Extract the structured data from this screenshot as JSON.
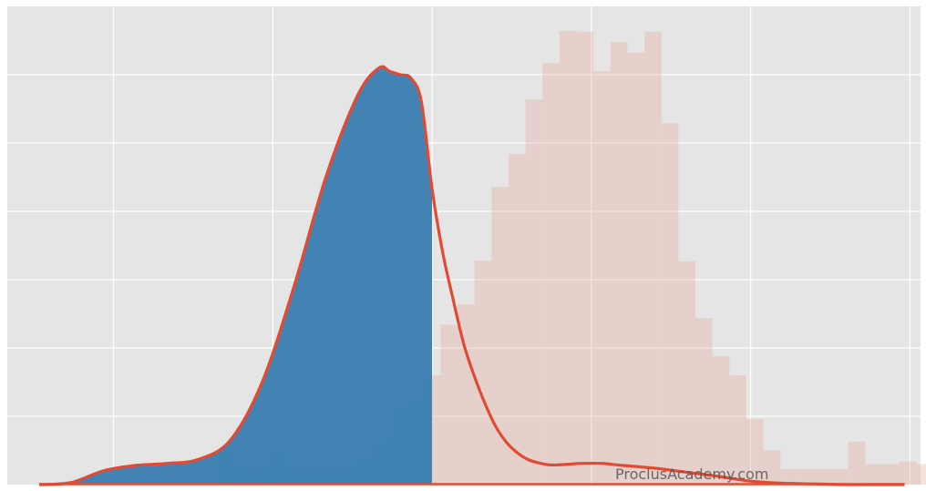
{
  "chart_data": {
    "type": "area",
    "title": "",
    "xlabel": "",
    "ylabel": "",
    "xlim": [
      -4.0,
      4.6
    ],
    "ylim": [
      0,
      0.7
    ],
    "grid": true,
    "xticks": [
      -3,
      -1.5,
      0,
      1.5,
      3,
      4.5
    ],
    "yticks": [
      0.1,
      0.2,
      0.3,
      0.4,
      0.5,
      0.6
    ],
    "shade_upper_bound": 0.0,
    "histogram": {
      "bin_start": -2.0,
      "bin_width": 0.16,
      "heights": [
        0.053,
        0.023,
        0.023,
        0.053,
        0.023,
        0.023,
        0.023,
        0.023,
        0.038,
        0.064,
        0.11,
        0.128,
        0.16,
        0.234,
        0.264,
        0.328,
        0.436,
        0.484,
        0.564,
        0.617,
        0.664,
        0.663,
        0.605,
        0.648,
        0.632,
        0.663,
        0.529,
        0.327,
        0.244,
        0.188,
        0.16,
        0.096,
        0.05,
        0.023,
        0.023,
        0.023,
        0.023,
        0.063,
        0.03,
        0.03,
        0.034,
        0.03
      ],
      "bar_highlight_height": 0.067
    },
    "density": {
      "x": [
        -3.7,
        -3.4,
        -3.1,
        -2.8,
        -2.5,
        -2.2,
        -1.9,
        -1.6,
        -1.3,
        -1.0,
        -0.7,
        -0.5,
        -0.4,
        -0.3,
        -0.2,
        -0.1,
        0.0,
        0.1,
        0.2,
        0.3,
        0.4,
        0.5,
        0.6,
        0.7,
        0.8,
        0.9,
        1.0,
        1.1,
        1.2,
        1.3,
        1.4,
        1.6,
        1.8,
        2.1,
        2.4,
        2.7,
        3.0,
        3.3,
        3.6,
        3.9,
        4.2,
        4.45
      ],
      "y": [
        0.0,
        0.003,
        0.02,
        0.028,
        0.031,
        0.037,
        0.065,
        0.15,
        0.29,
        0.45,
        0.57,
        0.61,
        0.605,
        0.6,
        0.595,
        0.56,
        0.433,
        0.34,
        0.27,
        0.205,
        0.158,
        0.118,
        0.085,
        0.062,
        0.047,
        0.037,
        0.032,
        0.029,
        0.029,
        0.03,
        0.031,
        0.031,
        0.028,
        0.024,
        0.018,
        0.012,
        0.005,
        0.002,
        0.001,
        0.0,
        0.0,
        0.0
      ],
      "color": "#E24A33",
      "fill_color": "#3A7DB0"
    },
    "colors": {
      "background": "#E5E5E5",
      "grid": "#FFFFFF",
      "hist_fill": "#E9A89F",
      "hist_highlight": "#348ABD",
      "kde_line": "#E24A33",
      "kde_fill": "#3A7DB0",
      "watermark": "#555555"
    }
  },
  "watermark": {
    "text": "ProclusAcademy.com"
  }
}
